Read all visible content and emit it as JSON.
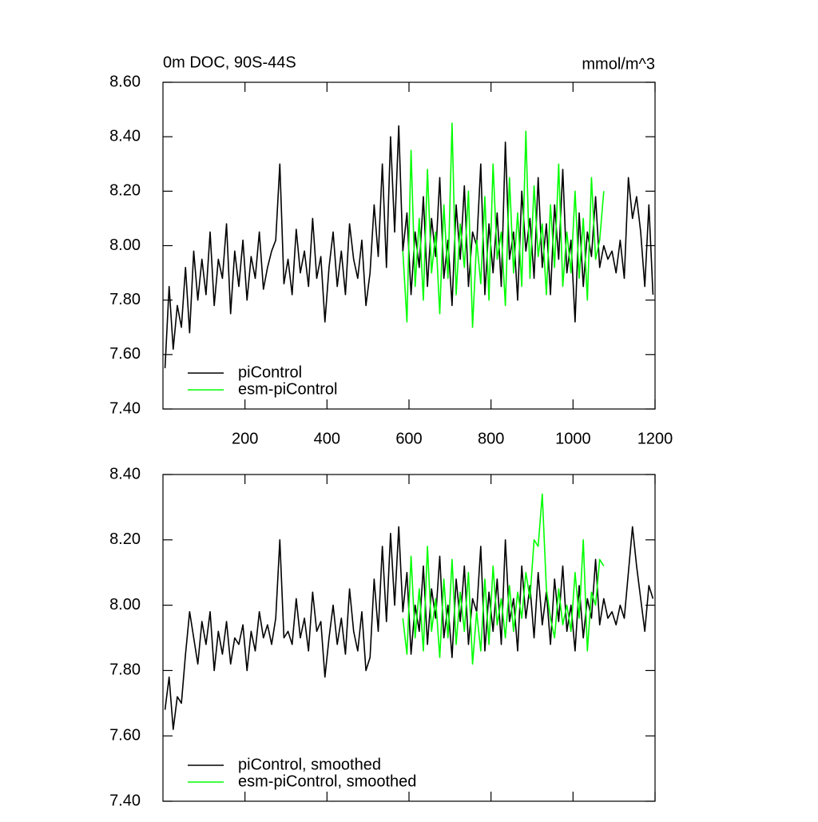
{
  "chart_data": [
    {
      "type": "line",
      "title": "0m DOC, 90S-44S",
      "units": "mmol/m^3",
      "x": [
        5,
        15,
        25,
        35,
        45,
        55,
        65,
        75,
        85,
        95,
        105,
        115,
        125,
        135,
        145,
        155,
        165,
        175,
        185,
        195,
        205,
        215,
        225,
        235,
        245,
        255,
        265,
        275,
        285,
        295,
        305,
        315,
        325,
        335,
        345,
        355,
        365,
        375,
        385,
        395,
        405,
        415,
        425,
        435,
        445,
        455,
        465,
        475,
        485,
        495,
        505,
        515,
        525,
        535,
        545,
        555,
        565,
        575,
        585,
        595,
        605,
        615,
        625,
        635,
        645,
        655,
        665,
        675,
        685,
        695,
        705,
        715,
        725,
        735,
        745,
        755,
        765,
        775,
        785,
        795,
        805,
        815,
        825,
        835,
        845,
        855,
        865,
        875,
        885,
        895,
        905,
        915,
        925,
        935,
        945,
        955,
        965,
        975,
        985,
        995,
        1005,
        1015,
        1025,
        1035,
        1045,
        1055,
        1065,
        1075,
        1085,
        1095,
        1105,
        1115,
        1125,
        1135,
        1145,
        1155,
        1165,
        1175,
        1185,
        1195
      ],
      "xlim": [
        0,
        1200
      ],
      "xticks": [
        200,
        400,
        600,
        800,
        1000,
        1200
      ],
      "ylim": [
        7.4,
        8.6
      ],
      "yticks": [
        {
          "value": 7.4,
          "label": "7.40"
        },
        {
          "value": 7.6,
          "label": "7.60"
        },
        {
          "value": 7.8,
          "label": "7.80"
        },
        {
          "value": 8.0,
          "label": "8.00"
        },
        {
          "value": 8.2,
          "label": "8.20"
        },
        {
          "value": 8.4,
          "label": "8.40"
        },
        {
          "value": 8.6,
          "label": "8.60"
        }
      ],
      "legend": "lower left",
      "series": [
        {
          "name": "piControl",
          "color": "#000000",
          "values": [
            7.55,
            7.85,
            7.62,
            7.78,
            7.7,
            7.92,
            7.68,
            7.98,
            7.8,
            7.95,
            7.82,
            8.05,
            7.78,
            7.95,
            7.88,
            8.08,
            7.75,
            7.98,
            7.85,
            8.02,
            7.8,
            7.96,
            7.88,
            8.05,
            7.84,
            7.92,
            7.98,
            8.02,
            8.3,
            7.86,
            7.95,
            7.82,
            8.06,
            7.9,
            7.98,
            7.85,
            8.1,
            7.88,
            7.96,
            7.72,
            7.92,
            8.05,
            7.85,
            7.98,
            7.82,
            8.08,
            7.95,
            7.88,
            8.02,
            7.78,
            7.9,
            8.15,
            7.96,
            8.3,
            7.92,
            8.4,
            8.05,
            8.44,
            7.98,
            8.12,
            7.82,
            8.05,
            7.92,
            8.18,
            7.85,
            8.1,
            7.96,
            8.25,
            7.88,
            8.02,
            7.78,
            8.15,
            7.95,
            8.22,
            7.85,
            8.05,
            8.0,
            8.3,
            7.82,
            8.08,
            7.9,
            8.12,
            7.85,
            8.38,
            7.95,
            8.05,
            7.8,
            8.2,
            7.98,
            8.1,
            7.88,
            8.25,
            7.92,
            8.08,
            7.82,
            8.15,
            7.95,
            8.28,
            7.9,
            8.02,
            7.72,
            8.12,
            7.85,
            8.05,
            7.96,
            8.18,
            7.92,
            8.0,
            7.95,
            7.98,
            7.9,
            8.02,
            7.88,
            8.25,
            8.1,
            8.18,
            8.05,
            7.85,
            8.15,
            7.82
          ]
        },
        {
          "name": "esm-piControl",
          "color": "#00ff00",
          "values": [
            null,
            null,
            null,
            null,
            null,
            null,
            null,
            null,
            null,
            null,
            null,
            null,
            null,
            null,
            null,
            null,
            null,
            null,
            null,
            null,
            null,
            null,
            null,
            null,
            null,
            null,
            null,
            null,
            null,
            null,
            null,
            null,
            null,
            null,
            null,
            null,
            null,
            null,
            null,
            null,
            null,
            null,
            null,
            null,
            null,
            null,
            null,
            null,
            null,
            null,
            null,
            null,
            null,
            null,
            null,
            null,
            null,
            null,
            7.98,
            7.72,
            8.35,
            7.85,
            8.1,
            7.8,
            8.28,
            7.9,
            8.05,
            7.75,
            8.15,
            7.88,
            8.45,
            7.82,
            8.08,
            7.92,
            8.2,
            7.7,
            8.02,
            7.86,
            8.18,
            7.8,
            8.3,
            7.95,
            8.05,
            7.78,
            8.25,
            7.9,
            8.12,
            7.85,
            8.42,
            7.88,
            8.22,
            7.96,
            8.08,
            7.82,
            8.15,
            7.92,
            8.3,
            7.85,
            8.05,
            7.9,
            8.2,
            7.88,
            8.1,
            7.8,
            8.25,
            7.95,
            8.02,
            8.2,
            null,
            null,
            null,
            null,
            null,
            null,
            null,
            null,
            null,
            null,
            null,
            null
          ]
        }
      ]
    },
    {
      "type": "line",
      "x": [
        5,
        15,
        25,
        35,
        45,
        55,
        65,
        75,
        85,
        95,
        105,
        115,
        125,
        135,
        145,
        155,
        165,
        175,
        185,
        195,
        205,
        215,
        225,
        235,
        245,
        255,
        265,
        275,
        285,
        295,
        305,
        315,
        325,
        335,
        345,
        355,
        365,
        375,
        385,
        395,
        405,
        415,
        425,
        435,
        445,
        455,
        465,
        475,
        485,
        495,
        505,
        515,
        525,
        535,
        545,
        555,
        565,
        575,
        585,
        595,
        605,
        615,
        625,
        635,
        645,
        655,
        665,
        675,
        685,
        695,
        705,
        715,
        725,
        735,
        745,
        755,
        765,
        775,
        785,
        795,
        805,
        815,
        825,
        835,
        845,
        855,
        865,
        875,
        885,
        895,
        905,
        915,
        925,
        935,
        945,
        955,
        965,
        975,
        985,
        995,
        1005,
        1015,
        1025,
        1035,
        1045,
        1055,
        1065,
        1075,
        1085,
        1095,
        1105,
        1115,
        1125,
        1135,
        1145,
        1155,
        1165,
        1175,
        1185,
        1195
      ],
      "xlim": [
        0,
        1200
      ],
      "xticks": [
        200,
        400,
        600,
        800,
        1000,
        1200
      ],
      "ylim": [
        7.4,
        8.4
      ],
      "yticks": [
        {
          "value": 7.4,
          "label": "7.40"
        },
        {
          "value": 7.6,
          "label": "7.60"
        },
        {
          "value": 7.8,
          "label": "7.80"
        },
        {
          "value": 8.0,
          "label": "8.00"
        },
        {
          "value": 8.2,
          "label": "8.20"
        },
        {
          "value": 8.4,
          "label": "8.40"
        }
      ],
      "legend": "lower left",
      "series": [
        {
          "name": "piControl, smoothed",
          "color": "#000000",
          "values": [
            7.68,
            7.78,
            7.62,
            7.72,
            7.7,
            7.85,
            7.98,
            7.9,
            7.82,
            7.95,
            7.88,
            7.98,
            7.8,
            7.92,
            7.85,
            7.95,
            7.82,
            7.9,
            7.88,
            7.94,
            7.8,
            7.92,
            7.86,
            7.98,
            7.9,
            7.94,
            7.88,
            7.96,
            8.2,
            7.9,
            7.92,
            7.88,
            8.02,
            7.9,
            7.96,
            7.86,
            8.04,
            7.92,
            7.95,
            7.78,
            7.9,
            8.0,
            7.88,
            7.96,
            7.85,
            8.05,
            7.92,
            7.86,
            7.98,
            7.8,
            7.84,
            8.08,
            7.92,
            8.18,
            7.95,
            8.22,
            8.0,
            8.24,
            7.98,
            8.1,
            7.85,
            8.0,
            7.92,
            8.12,
            7.88,
            8.05,
            7.96,
            8.15,
            7.9,
            8.0,
            7.84,
            8.08,
            7.95,
            8.12,
            7.88,
            8.02,
            7.98,
            8.18,
            7.86,
            8.04,
            7.92,
            8.08,
            7.88,
            8.2,
            7.95,
            8.02,
            7.86,
            8.12,
            7.96,
            8.06,
            7.9,
            8.1,
            7.94,
            8.04,
            7.88,
            8.08,
            7.95,
            8.12,
            7.92,
            8.0,
            7.86,
            8.06,
            7.9,
            8.02,
            7.96,
            8.14,
            7.94,
            8.02,
            7.96,
            7.98,
            7.94,
            8.0,
            7.96,
            8.1,
            8.24,
            8.12,
            8.02,
            7.92,
            8.06,
            8.02
          ]
        },
        {
          "name": "esm-piControl, smoothed",
          "color": "#00ff00",
          "values": [
            null,
            null,
            null,
            null,
            null,
            null,
            null,
            null,
            null,
            null,
            null,
            null,
            null,
            null,
            null,
            null,
            null,
            null,
            null,
            null,
            null,
            null,
            null,
            null,
            null,
            null,
            null,
            null,
            null,
            null,
            null,
            null,
            null,
            null,
            null,
            null,
            null,
            null,
            null,
            null,
            null,
            null,
            null,
            null,
            null,
            null,
            null,
            null,
            null,
            null,
            null,
            null,
            null,
            null,
            null,
            null,
            null,
            null,
            7.96,
            7.85,
            8.15,
            7.9,
            8.05,
            7.86,
            8.18,
            7.92,
            8.02,
            7.84,
            8.08,
            7.9,
            8.14,
            7.88,
            8.04,
            7.92,
            8.1,
            7.82,
            7.98,
            7.86,
            8.08,
            7.88,
            8.12,
            7.94,
            8.02,
            7.9,
            8.06,
            7.92,
            8.04,
            7.96,
            8.1,
            8.02,
            8.2,
            8.18,
            8.34,
            8.05,
            7.96,
            7.9,
            8.05,
            7.94,
            8.0,
            7.92,
            8.1,
            7.96,
            8.2,
            7.86,
            8.04,
            8.0,
            8.14,
            8.12,
            null,
            null,
            null,
            null,
            null,
            null,
            null,
            null,
            null,
            null,
            null,
            null
          ]
        }
      ]
    }
  ]
}
